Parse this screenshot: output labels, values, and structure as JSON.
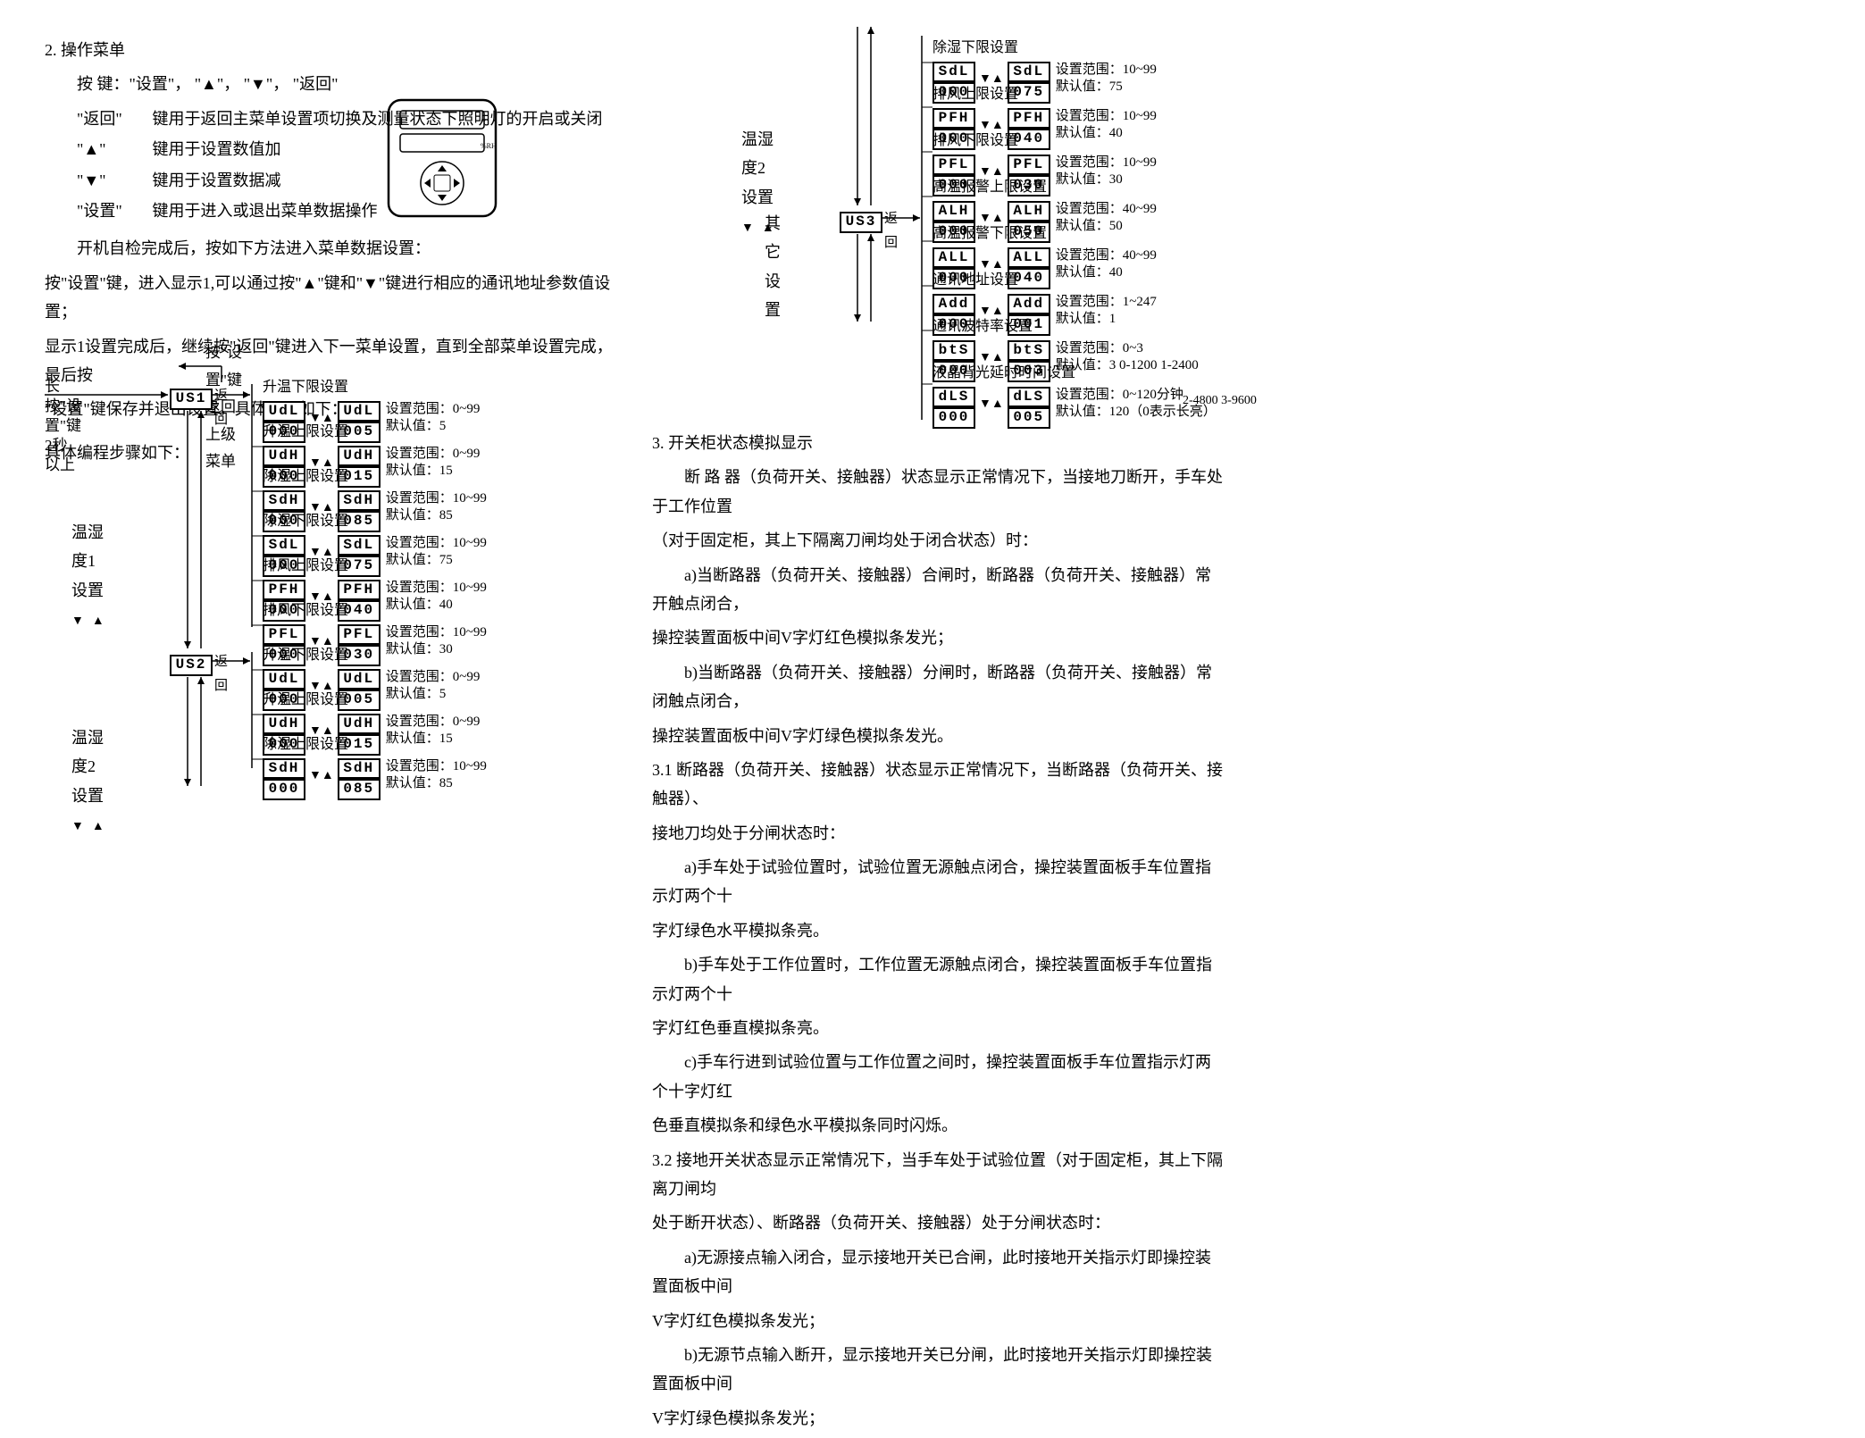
{
  "left": {
    "title": "2.  操作菜单",
    "keys_line": "按 键：\"设置\"， \"▲\"， \"▼\"， \"返回\"",
    "key_desc": [
      {
        "k": "\"返回\"",
        "d": "键用于返回主菜单设置项切换及测量状态下照明灯的开启或关闭"
      },
      {
        "k": "\"▲\"",
        "d": "键用于设置数值加"
      },
      {
        "k": "\"▼\"",
        "d": "键用于设置数据减"
      },
      {
        "k": "\"设置\"",
        "d": "键用于进入或退出菜单数据操作"
      }
    ],
    "boot": "开机自检完成后，按如下方法进入菜单数据设置：",
    "p1": "按\"设置\"键，进入显示1,可以通过按\"▲\"键和\"▼\"键进行相应的通讯地址参数值设置；",
    "p2": "显示1设置完成后，继续按\"返回\"键进入下一菜单设置，直到全部菜单设置完成，最后按",
    "p3": "\"设置\"键保存并退出设置。具体设置如下：",
    "steps": "具体编程步骤如下：",
    "back_menu": "按\"设置\"键返回上级菜单",
    "long_press_1": "长按\"设置\"键",
    "long_press_2": "2秒以上",
    "ret": "返回",
    "us1": "US1",
    "us2": "US2",
    "us3": "US3",
    "g1": "温湿度1设置",
    "g2": "温湿度2设置",
    "g2r": "温湿度2设置",
    "g3": "其它设置",
    "settings_a": [
      {
        "t": "升温下限设置",
        "c1": "UdL",
        "v1": "000",
        "c2": "UdL",
        "v2": "005",
        "r": "设置范围：0~99",
        "d": "默认值：5"
      },
      {
        "t": "升温上限设置",
        "c1": "UdH",
        "v1": "000",
        "c2": "UdH",
        "v2": "015",
        "r": "设置范围：0~99",
        "d": "默认值：15"
      },
      {
        "t": "除湿上限设置",
        "c1": "SdH",
        "v1": "000",
        "c2": "SdH",
        "v2": "085",
        "r": "设置范围：10~99",
        "d": "默认值：85"
      },
      {
        "t": "除湿下限设置",
        "c1": "SdL",
        "v1": "000",
        "c2": "SdL",
        "v2": "075",
        "r": "设置范围：10~99",
        "d": "默认值：75"
      },
      {
        "t": "排风上限设置",
        "c1": "PFH",
        "v1": "000",
        "c2": "PFH",
        "v2": "040",
        "r": "设置范围：10~99",
        "d": "默认值：40"
      },
      {
        "t": "排风下限设置",
        "c1": "PFL",
        "v1": "000",
        "c2": "PFL",
        "v2": "030",
        "r": "设置范围：10~99",
        "d": "默认值：30"
      }
    ],
    "settings_b": [
      {
        "t": "升温下限设置",
        "c1": "UdL",
        "v1": "000",
        "c2": "UdL",
        "v2": "005",
        "r": "设置范围：0~99",
        "d": "默认值：5"
      },
      {
        "t": "升温上限设置",
        "c1": "UdH",
        "v1": "000",
        "c2": "UdH",
        "v2": "015",
        "r": "设置范围：0~99",
        "d": "默认值：15"
      },
      {
        "t": "除湿上限设置",
        "c1": "SdH",
        "v1": "000",
        "c2": "SdH",
        "v2": "085",
        "r": "设置范围：10~99",
        "d": "默认值：85"
      }
    ],
    "settings_c": [
      {
        "t": "除湿下限设置",
        "c1": "SdL",
        "v1": "000",
        "c2": "SdL",
        "v2": "075",
        "r": "设置范围：10~99",
        "d": "默认值：75"
      },
      {
        "t": "排风上限设置",
        "c1": "PFH",
        "v1": "000",
        "c2": "PFH",
        "v2": "040",
        "r": "设置范围：10~99",
        "d": "默认值：40"
      },
      {
        "t": "排风下限设置",
        "c1": "PFL",
        "v1": "000",
        "c2": "PFL",
        "v2": "030",
        "r": "设置范围：10~99",
        "d": "默认值：30"
      },
      {
        "t": "高温报警上限设置",
        "c1": "ALH",
        "v1": "000",
        "c2": "ALH",
        "v2": "050",
        "r": "设置范围：40~99",
        "d": "默认值：50"
      },
      {
        "t": "高温报警下限设置",
        "c1": "ALL",
        "v1": "000",
        "c2": "ALL",
        "v2": "040",
        "r": "设置范围：40~99",
        "d": "默认值：40"
      },
      {
        "t": "通讯地址设置",
        "c1": "Add",
        "v1": "000",
        "c2": "Add",
        "v2": "001",
        "r": "设置范围：1~247",
        "d": "默认值：1"
      },
      {
        "t": "通讯波特率设置",
        "c1": "btS",
        "v1": "000",
        "c2": "btS",
        "v2": "003",
        "r": "设置范围：0~3",
        "d": "默认值：3   0-1200  1-2400"
      },
      {
        "t": "液晶背光延时时间设置",
        "c1": "dLS",
        "v1": "000",
        "c2": "dLS",
        "v2": "005",
        "r": "设置范围：0~120分钟",
        "d": "默认值：120（0表示长亮）",
        "extra": "2-4800  3-9600"
      }
    ]
  },
  "right": {
    "title": "3.  开关柜状态模拟显示",
    "p": [
      "断 路 器（负荷开关、接触器）状态显示正常情况下，当接地刀断开，手车处于工作位置",
      "（对于固定柜，其上下隔离刀闸均处于闭合状态）时：",
      "a)当断路器（负荷开关、接触器）合闸时，断路器（负荷开关、接触器）常开触点闭合，",
      "操控装置面板中间V字灯红色模拟条发光；",
      "b)当断路器（负荷开关、接触器）分闸时，断路器（负荷开关、接触器）常闭触点闭合，",
      "操控装置面板中间V字灯绿色模拟条发光。",
      "3.1  断路器（负荷开关、接触器）状态显示正常情况下，当断路器（负荷开关、接触器）、",
      "接地刀均处于分闸状态时：",
      "a)手车处于试验位置时，试验位置无源触点闭合，操控装置面板手车位置指示灯两个十",
      "字灯绿色水平模拟条亮。",
      "b)手车处于工作位置时，工作位置无源触点闭合，操控装置面板手车位置指示灯两个十",
      "字灯红色垂直模拟条亮。",
      "c)手车行进到试验位置与工作位置之间时，操控装置面板手车位置指示灯两个十字灯红",
      "色垂直模拟条和绿色水平模拟条同时闪烁。",
      "3.2   接地开关状态显示正常情况下，当手车处于试验位置（对于固定柜，其上下隔离刀闸均",
      "处于断开状态）、断路器（负荷开关、接触器）处于分闸状态时：",
      "a)无源接点输入闭合，显示接地开关已合闸，此时接地开关指示灯即操控装置面板中间",
      "V字灯红色模拟条发光；",
      "b)无源节点输入断开，显示接地开关已分闸，此时接地开关指示灯即操控装置面板中间",
      "V字灯绿色模拟条发光；"
    ]
  }
}
